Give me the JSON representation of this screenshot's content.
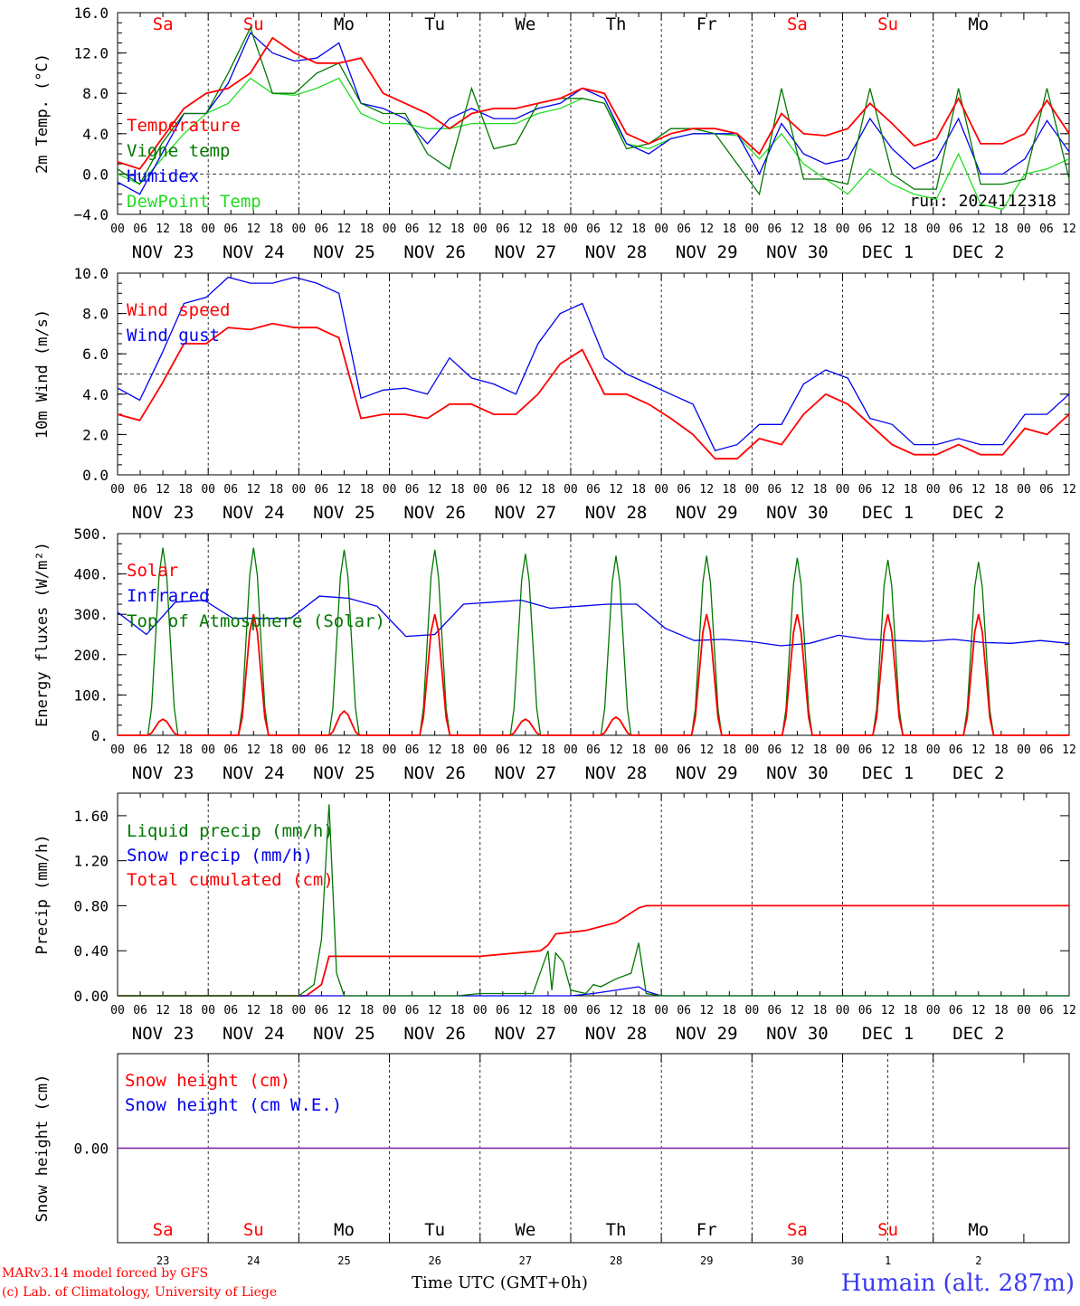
{
  "colors": {
    "red": "#ff0000",
    "green": "#007700",
    "blue": "#0000ee",
    "lime": "#22dd22",
    "purple": "#7a1aa0"
  },
  "day_names": [
    {
      "label": "Sa",
      "weekend": true
    },
    {
      "label": "Su",
      "weekend": true
    },
    {
      "label": "Mo",
      "weekend": false
    },
    {
      "label": "Tu",
      "weekend": false
    },
    {
      "label": "We",
      "weekend": false
    },
    {
      "label": "Th",
      "weekend": false
    },
    {
      "label": "Fr",
      "weekend": false
    },
    {
      "label": "Sa",
      "weekend": true
    },
    {
      "label": "Su",
      "weekend": true
    },
    {
      "label": "Mo",
      "weekend": false
    }
  ],
  "date_labels": [
    "NOV 23",
    "NOV 24",
    "NOV 25",
    "NOV 26",
    "NOV 27",
    "NOV 28",
    "NOV 29",
    "NOV 30",
    "DEC  1",
    "DEC  2"
  ],
  "day_numbers": [
    "23",
    "24",
    "25",
    "26",
    "27",
    "28",
    "29",
    "30",
    "1",
    "2"
  ],
  "hour_ticks": [
    "00",
    "06",
    "12",
    "18"
  ],
  "footer": {
    "model": "MARv3.14 model forced by GFS",
    "lab": "(c) Lab. of Climatology, University of Liege",
    "time_axis": "Time UTC (GMT+0h)",
    "station": "Humain (alt. 287m)"
  },
  "chart_data": [
    {
      "type": "line",
      "ylabel": "2m Temp. (°C)",
      "yticks": [
        "16.0",
        "12.0",
        "8.0",
        "4.0",
        "0.0",
        "−4.0"
      ],
      "ylim": [
        -4,
        16
      ],
      "ref_line": 0,
      "annotation": "run: 2024112318",
      "x_start": "2024-11-23 00 UTC",
      "x_step_hours": 6,
      "series": [
        {
          "name": "Temperature",
          "color": "red",
          "values": [
            1.2,
            0.5,
            3.5,
            6.5,
            8,
            8.5,
            10,
            13.5,
            12,
            11,
            11,
            11.5,
            8,
            7,
            6,
            4.5,
            6,
            6.5,
            6.5,
            7,
            7.5,
            8.5,
            8,
            4,
            3,
            4,
            4.5,
            4.5,
            4,
            2,
            6,
            4,
            3.8,
            4.5,
            7,
            5,
            2.8,
            3.5,
            7.5,
            3,
            3,
            4,
            7.3,
            4
          ]
        },
        {
          "name": "Vigne temp",
          "color": "green",
          "values": [
            0.5,
            -1,
            3,
            6,
            6,
            10,
            14.5,
            8,
            8,
            10,
            11,
            7,
            6,
            6,
            2,
            0.5,
            8.5,
            2.5,
            3,
            7,
            7.5,
            7.5,
            7,
            2.5,
            3,
            4.5,
            4.5,
            4,
            1,
            -2,
            8.5,
            -0.5,
            -0.5,
            -1,
            8.5,
            0,
            -1.5,
            -1.5,
            8.5,
            -1,
            -1,
            -0.5,
            8.5,
            -0.5
          ]
        },
        {
          "name": "Humidex",
          "color": "blue",
          "values": [
            -0.8,
            -2,
            2,
            6,
            6,
            9,
            14,
            12,
            11.2,
            11.5,
            13,
            7,
            6.5,
            5.5,
            3,
            5.5,
            6.5,
            5.5,
            5.5,
            6.5,
            7,
            8.5,
            7.5,
            3,
            2,
            3.5,
            4,
            4,
            4,
            0,
            5,
            2,
            1,
            1.5,
            5.5,
            2.5,
            0.5,
            1.5,
            5.5,
            0,
            0,
            1.5,
            5.3,
            2.2
          ]
        },
        {
          "name": "DewPoint Temp",
          "color": "lime",
          "values": [
            0,
            -1,
            1.5,
            4,
            6,
            7,
            9.5,
            8,
            7.8,
            8.5,
            9.5,
            6,
            5,
            5,
            4.5,
            4.5,
            5,
            5,
            5,
            6,
            6.5,
            7.5,
            7,
            3,
            2.5,
            3.5,
            4,
            4,
            3.8,
            1.5,
            4,
            1,
            -0.5,
            -2,
            0.5,
            -1,
            -2,
            -2.5,
            2,
            -3,
            -3.5,
            0,
            0.5,
            1.5
          ]
        }
      ]
    },
    {
      "type": "line",
      "ylabel": "10m Wind (m/s)",
      "yticks": [
        "10.0",
        "8.0",
        "6.0",
        "4.0",
        "2.0",
        "0.0"
      ],
      "ylim": [
        0,
        10
      ],
      "ref_line": 5,
      "x_start": "2024-11-23 00 UTC",
      "x_step_hours": 6,
      "series": [
        {
          "name": "Wind speed",
          "color": "red",
          "values": [
            3,
            2.7,
            4.5,
            6.5,
            6.5,
            7.3,
            7.2,
            7.5,
            7.3,
            7.3,
            6.8,
            2.8,
            3,
            3,
            2.8,
            3.5,
            3.5,
            3,
            3,
            4,
            5.5,
            6.2,
            4,
            4,
            3.5,
            2.8,
            2,
            0.8,
            0.8,
            1.8,
            1.5,
            3,
            4,
            3.5,
            2.5,
            1.5,
            1,
            1,
            1.5,
            1,
            1,
            2.3,
            2,
            3
          ]
        },
        {
          "name": "Wind gust",
          "color": "blue",
          "values": [
            4.3,
            3.7,
            6,
            8.5,
            8.8,
            9.8,
            9.5,
            9.5,
            9.8,
            9.5,
            9,
            3.8,
            4.2,
            4.3,
            4,
            5.8,
            4.8,
            4.5,
            4,
            6.5,
            8,
            8.5,
            5.8,
            5,
            4.5,
            4,
            3.5,
            1.2,
            1.5,
            2.5,
            2.5,
            4.5,
            5.2,
            4.8,
            2.8,
            2.5,
            1.5,
            1.5,
            1.8,
            1.5,
            1.5,
            3,
            3,
            4
          ]
        }
      ]
    },
    {
      "type": "line",
      "ylabel": "Energy fluxes (W/m²)",
      "yticks": [
        "500.",
        "400.",
        "300.",
        "200.",
        "100.",
        "0."
      ],
      "ylim": [
        0,
        500
      ],
      "x_start": "2024-11-23 00 UTC",
      "daylight_hours": [
        8,
        16
      ],
      "series": [
        {
          "name": "Solar",
          "color": "red",
          "peaks": [
            40,
            300,
            60,
            300,
            40,
            45,
            300,
            300,
            300,
            300
          ]
        },
        {
          "name": "Infrared",
          "color": "blue",
          "values": [
            305,
            250,
            330,
            335,
            290,
            290,
            290,
            345,
            340,
            320,
            245,
            250,
            325,
            330,
            335,
            315,
            320,
            325,
            325,
            265,
            235,
            238,
            232,
            222,
            228,
            248,
            238,
            235,
            233,
            238,
            230,
            228,
            235,
            228
          ]
        },
        {
          "name": "Top of Atmosphere (Solar)",
          "color": "green",
          "peaks": [
            465,
            465,
            460,
            460,
            450,
            445,
            445,
            440,
            435,
            430
          ]
        }
      ]
    },
    {
      "type": "line",
      "ylabel": "Precip (mm/h)",
      "yticks": [
        "1.60",
        "1.20",
        "0.80",
        "0.40",
        "0.00"
      ],
      "ylim": [
        0,
        1.8
      ],
      "x_start": "2024-11-23 00 UTC",
      "series": [
        {
          "name": "Liquid precip (mm/h)",
          "color": "green",
          "points": [
            [
              0,
              0
            ],
            [
              48,
              0
            ],
            [
              52,
              0.1
            ],
            [
              54,
              0.5
            ],
            [
              56,
              1.7
            ],
            [
              58,
              0.2
            ],
            [
              60,
              0
            ],
            [
              90,
              0
            ],
            [
              96,
              0.02
            ],
            [
              110,
              0.02
            ],
            [
              114,
              0.4
            ],
            [
              115,
              0.05
            ],
            [
              116,
              0.38
            ],
            [
              118,
              0.3
            ],
            [
              120,
              0.05
            ],
            [
              124,
              0.02
            ],
            [
              126,
              0.1
            ],
            [
              128,
              0.08
            ],
            [
              132,
              0.15
            ],
            [
              136,
              0.2
            ],
            [
              138,
              0.47
            ],
            [
              140,
              0.02
            ],
            [
              144,
              0
            ],
            [
              252,
              0
            ]
          ]
        },
        {
          "name": "Snow precip (mm/h)",
          "color": "blue",
          "points": [
            [
              0,
              0
            ],
            [
              120,
              0
            ],
            [
              126,
              0.02
            ],
            [
              134,
              0.06
            ],
            [
              138,
              0.08
            ],
            [
              140,
              0.04
            ],
            [
              144,
              0
            ],
            [
              252,
              0
            ]
          ]
        },
        {
          "name": "Total cumulated (cm)",
          "color": "red",
          "points": [
            [
              0,
              0
            ],
            [
              50,
              0
            ],
            [
              54,
              0.1
            ],
            [
              56,
              0.35
            ],
            [
              96,
              0.35
            ],
            [
              112,
              0.4
            ],
            [
              114,
              0.45
            ],
            [
              116,
              0.55
            ],
            [
              124,
              0.58
            ],
            [
              132,
              0.65
            ],
            [
              138,
              0.78
            ],
            [
              140,
              0.8
            ],
            [
              252,
              0.8
            ]
          ]
        }
      ]
    },
    {
      "type": "line",
      "ylabel": "Snow height (cm)",
      "yticks": [
        "0.00"
      ],
      "ylim": [
        -1,
        1
      ],
      "x_start": "2024-11-23 00 UTC",
      "series": [
        {
          "name": "Snow height (cm)",
          "color": "red",
          "points": [
            [
              0,
              0
            ],
            [
              252,
              0
            ]
          ]
        },
        {
          "name": "Snow height (cm W.E.)",
          "color": "blue",
          "points": [
            [
              0,
              0
            ],
            [
              252,
              0
            ]
          ]
        }
      ]
    }
  ]
}
